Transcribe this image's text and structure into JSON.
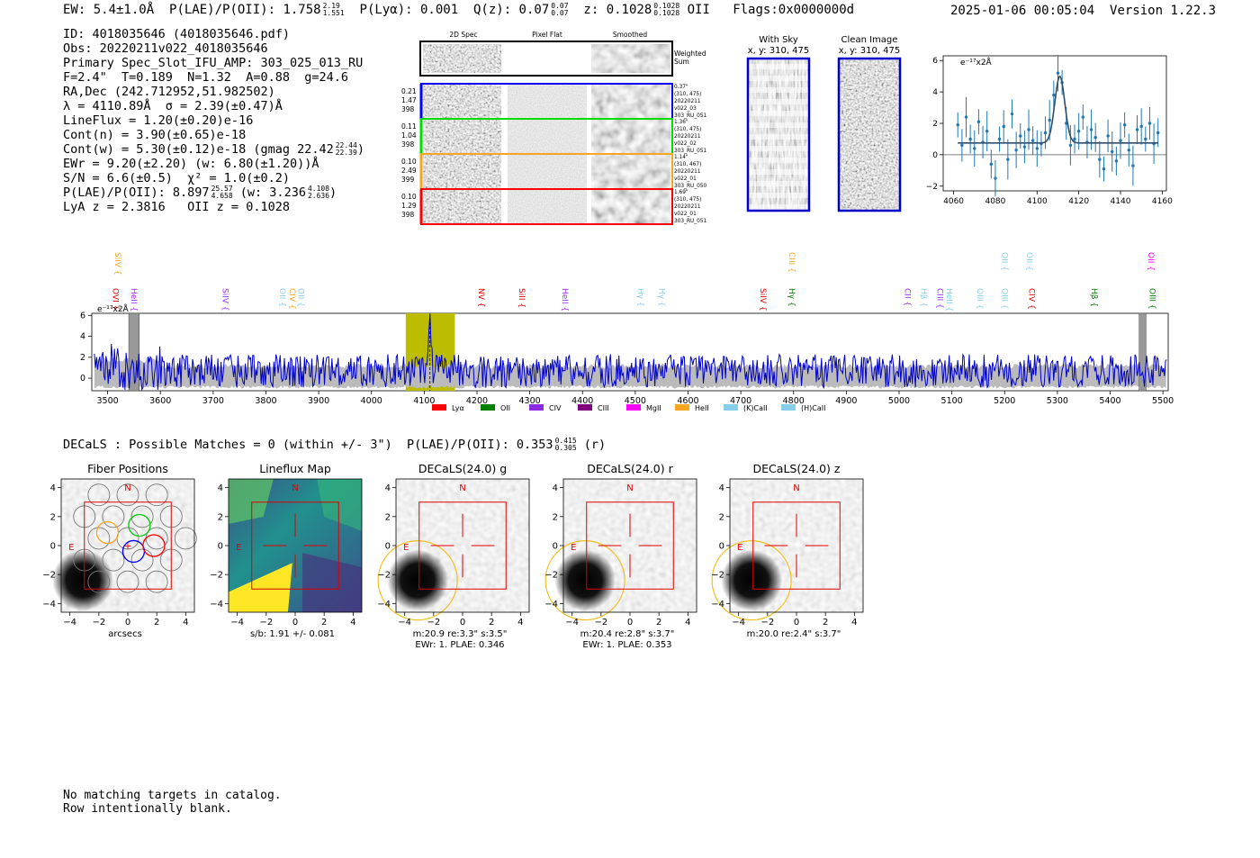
{
  "header": {
    "ew": "EW: 5.4±1.0Å",
    "plae_label": "P(LAE)/P(OII): 1.758",
    "plae_hi": "2.19",
    "plae_lo": "1.551",
    "plya": "P(Lyα): 0.001",
    "qz": "Q(z): 0.07",
    "qz_hi": "0.07",
    "qz_lo": "0.07",
    "z": "z: 0.1028",
    "z_hi": "0.1028",
    "z_lo": "0.1028",
    "z_line": "OII",
    "flags": "Flags:0x0000000d",
    "timestamp": "2025-01-06 00:05:04",
    "version": "Version 1.22.3"
  },
  "info": {
    "id": "ID: 4018035646 (4018035646.pdf)",
    "obs": "Obs: 20220211v022_4018035646",
    "primary": "Primary Spec_Slot_IFU_AMP: 303_025_013_RU",
    "fiber": "F=2.4\"  T=0.189  N=1.32  A=0.88  g=24.6",
    "radec": "RA,Dec (242.712952,51.982502)",
    "lambda": "λ = 4110.89Å  σ = 2.39(±0.47)Å",
    "lineflux": "LineFlux = 1.20(±0.20)e-16",
    "contn": "Cont(n) = 3.90(±0.65)e-18",
    "contw": "Cont(w) = 5.30(±0.12)e-18 (gmag 22.42",
    "contw_hi": "22.44",
    "contw_lo": "22.39",
    "contw_close": ")",
    "ewr": "EWr = 9.20(±2.20) (w: 6.80(±1.20))Å",
    "sn": "S/N = 6.6(±0.5)  χ² = 1.0(±0.2)",
    "plae": "P(LAE)/P(OII): 8.897",
    "plae_hi": "25.57",
    "plae_lo": "4.658",
    "plae_w": "(w: 3.236",
    "plae_w_hi": "4.108",
    "plae_w_lo": "2.636",
    "plae_w_close": ")",
    "zline": "LyA z = 2.3816   OII z = 0.1028"
  },
  "cutouts": {
    "headers": [
      "2D Spec",
      "Pixel Flat",
      "Smoothed"
    ],
    "weighted_label_1": "Weighted",
    "weighted_label_2": "Sum",
    "rows": [
      {
        "w1": "0.21",
        "w2": "1.47",
        "w3": "398",
        "r1": "0.37\"",
        "r2": "(310, 475)",
        "r3": "20220211",
        "r4": "v022_03",
        "r5": "303_RU_051",
        "color": "#0000ff"
      },
      {
        "w1": "0.11",
        "w2": "1.04",
        "w3": "398",
        "r1": "1.36\"",
        "r2": "(310, 475)",
        "r3": "20220211",
        "r4": "v022_02",
        "r5": "303_RU_051",
        "color": "#00dd00"
      },
      {
        "w1": "0.10",
        "w2": "2.49",
        "w3": "399",
        "r1": "1.14\"",
        "r2": "(310, 467)",
        "r3": "20220211",
        "r4": "v022_01",
        "r5": "303_RU_050",
        "color": "#f5a623"
      },
      {
        "w1": "0.10",
        "w2": "1.29",
        "w3": "398",
        "r1": "1.69\"",
        "r2": "(310, 475)",
        "r3": "20220211",
        "r4": "v022_01",
        "r5": "303_RU_051",
        "color": "#ff0000"
      }
    ]
  },
  "sky_panels": {
    "with_sky_title": "With Sky",
    "with_sky_coords": "x, y: 310, 475",
    "clean_title": "Clean Image",
    "clean_coords": "x, y: 310, 475"
  },
  "zoom_plot": {
    "ylabel": "e⁻¹⁷x2Å",
    "x_ticks": [
      "4060",
      "4080",
      "4100",
      "4120",
      "4140",
      "4160"
    ],
    "y_ticks": [
      "6",
      "4",
      "2",
      "0",
      "−2"
    ]
  },
  "full_spectrum": {
    "ylabel": "e⁻¹⁷x2Å",
    "x_ticks": [
      "3500",
      "3600",
      "3700",
      "3800",
      "3900",
      "4000",
      "4100",
      "4200",
      "4300",
      "4400",
      "4500",
      "4600",
      "4700",
      "4800",
      "4900",
      "5000",
      "5100",
      "5200",
      "5300",
      "5400",
      "5500"
    ],
    "y_ticks": [
      "6",
      "4",
      "2",
      "0"
    ],
    "line_labels_low": [
      {
        "text": "OVI",
        "color": "#e00000",
        "wave": 3505
      },
      {
        "text": "HeII",
        "color": "#9b30ff",
        "wave": 3540
      },
      {
        "text": "SiIV",
        "color": "#9b30ff",
        "wave": 3713
      },
      {
        "text": "OII",
        "color": "#87ceeb",
        "wave": 3821
      },
      {
        "text": "CIV",
        "color": "#f5a623",
        "wave": 3840
      },
      {
        "text": "OII",
        "color": "#87ceeb",
        "wave": 3856
      },
      {
        "text": "NV",
        "color": "#e00000",
        "wave": 4198
      },
      {
        "text": "SiII",
        "color": "#e00000",
        "wave": 4275
      },
      {
        "text": "HeII",
        "color": "#9b30ff",
        "wave": 4357
      },
      {
        "text": "Hγ",
        "color": "#87ceeb",
        "wave": 4500
      },
      {
        "text": "Hγ",
        "color": "#87ceeb",
        "wave": 4540
      },
      {
        "text": "SiIV",
        "color": "#e00000",
        "wave": 4732
      },
      {
        "text": "Hγ",
        "color": "#008000",
        "wave": 4787
      },
      {
        "text": "CII",
        "color": "#9b30ff",
        "wave": 5006
      },
      {
        "text": "Hβ",
        "color": "#87ceeb",
        "wave": 5037
      },
      {
        "text": "CIII",
        "color": "#9b30ff",
        "wave": 5067
      },
      {
        "text": "HeII",
        "color": "#87ceeb",
        "wave": 5085
      },
      {
        "text": "OIII",
        "color": "#87ceeb",
        "wave": 5143
      },
      {
        "text": "OIII",
        "color": "#87ceeb",
        "wave": 5190
      },
      {
        "text": "CIV",
        "color": "#e00000",
        "wave": 5241
      },
      {
        "text": "Hβ",
        "color": "#008000",
        "wave": 5360
      },
      {
        "text": "OIII",
        "color": "#008000",
        "wave": 5470
      }
    ],
    "line_labels_high": [
      {
        "text": "SiIV",
        "color": "#f5a623",
        "wave": 3509
      },
      {
        "text": "CIII",
        "color": "#f5a623",
        "wave": 4787
      },
      {
        "text": "OII",
        "color": "#87ceeb",
        "wave": 5190
      },
      {
        "text": "OII",
        "color": "#87ceeb",
        "wave": 5237
      },
      {
        "text": "OII",
        "color": "#ff00ff",
        "wave": 5467
      }
    ],
    "legend": [
      {
        "text": "Lyα",
        "color": "#ff0000"
      },
      {
        "text": "OII",
        "color": "#008000"
      },
      {
        "text": "CIV",
        "color": "#8a2be2"
      },
      {
        "text": "CIII",
        "color": "#800080"
      },
      {
        "text": "MgII",
        "color": "#ff00ff"
      },
      {
        "text": "HeII",
        "color": "#f5a623"
      },
      {
        "text": "(K)CaII",
        "color": "#87ceeb"
      },
      {
        "text": "(H)CaII",
        "color": "#87ceeb"
      }
    ]
  },
  "decals": {
    "title": "DECaLS : Possible Matches = 0 (within +/- 3\")  P(LAE)/P(OII): 0.353",
    "plae_hi": "0.415",
    "plae_lo": "0.305",
    "suffix": "(r)"
  },
  "thumbnails": [
    {
      "title": "Fiber Positions",
      "cap1": "arcsecs",
      "cap2": ""
    },
    {
      "title": "Lineflux Map",
      "cap1": "s/b: 1.91 +/- 0.081",
      "cap2": ""
    },
    {
      "title": "DECaLS(24.0) g",
      "cap1": "m:20.9  re:3.3\"  s:3.5\"",
      "cap2": "EWr: 1. PLAE: 0.346"
    },
    {
      "title": "DECaLS(24.0) r",
      "cap1": "m:20.4  re:2.8\"  s:3.7\"",
      "cap2": "EWr: 1. PLAE: 0.353"
    },
    {
      "title": "DECaLS(24.0) z",
      "cap1": "m:20.0  re:2.4\"  s:3.7\"",
      "cap2": ""
    }
  ],
  "thumb_axes": {
    "ticks": [
      "−4",
      "−2",
      "0",
      "2",
      "4"
    ],
    "north": "N",
    "east": "E"
  },
  "footer": {
    "line1": "No matching targets in catalog.",
    "line2": "Row intentionally blank."
  },
  "chart_data": [
    {
      "type": "scatter",
      "title": "",
      "xlabel": "",
      "ylabel": "e⁻¹⁷x2Å",
      "xlim": [
        4055,
        4162
      ],
      "ylim": [
        -2.3,
        6.3
      ],
      "note": "1D zoomed spectrum around 4110.9 Å with error bars and Gaussian fit (peak ~5.0 at 4110.9 Å, sigma 2.39 Å, continuum ~0.75)",
      "x": [
        4062,
        4064,
        4066,
        4068,
        4070,
        4072,
        4074,
        4076,
        4078,
        4080,
        4082,
        4084,
        4086,
        4088,
        4090,
        4092,
        4094,
        4096,
        4098,
        4100,
        4102,
        4104,
        4106,
        4108,
        4110,
        4112,
        4114,
        4116,
        4118,
        4120,
        4122,
        4124,
        4126,
        4128,
        4130,
        4132,
        4134,
        4136,
        4138,
        4140,
        4142,
        4144,
        4146,
        4148,
        4150,
        4152,
        4154,
        4156,
        4158
      ],
      "y": [
        1.9,
        0.6,
        2.4,
        1.0,
        0.4,
        2.1,
        0.8,
        1.5,
        -0.6,
        -1.5,
        1.0,
        1.8,
        -0.3,
        2.6,
        0.3,
        1.2,
        0.5,
        1.6,
        0.9,
        0.4,
        0.7,
        1.4,
        2.2,
        3.8,
        5.2,
        4.6,
        2.0,
        0.6,
        1.0,
        1.5,
        2.4,
        0.8,
        1.6,
        1.1,
        -0.3,
        -0.9,
        1.2,
        0.2,
        -0.4,
        0.9,
        1.9,
        0.3,
        -0.7,
        1.6,
        1.8,
        1.0,
        2.0,
        0.7,
        1.4
      ],
      "fit_peak": 5.0,
      "fit_center": 4110.9,
      "fit_sigma": 2.39,
      "fit_continuum": 0.75
    },
    {
      "type": "line",
      "title": "",
      "xlabel": "",
      "ylabel": "e⁻¹⁷x2Å",
      "xlim": [
        3470,
        5510
      ],
      "ylim": [
        -1.2,
        6.2
      ],
      "series": [
        {
          "name": "spectrum",
          "color": "#0000cc"
        },
        {
          "name": "noise",
          "color": "#bbbbbb"
        }
      ],
      "highlight_window": [
        4065,
        4158
      ],
      "line_center": 4110.9,
      "masked_regions": [
        [
          3540,
          3560
        ],
        [
          5455,
          5468
        ]
      ],
      "note": "noisy full-range spectrum with emission peak of ~5.2 at 4110.9 Å, continuum ~0.7"
    }
  ]
}
